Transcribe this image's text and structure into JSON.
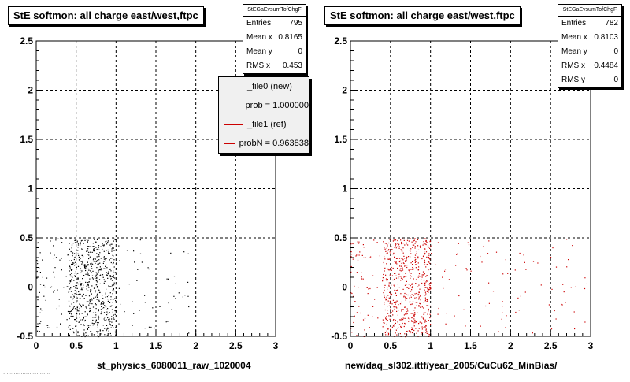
{
  "footer": "...........................",
  "chart_data": [
    {
      "type": "scatter",
      "title": "StE softmon: all charge east/west,ftpc",
      "xlabel": "st_physics_6080011_raw_1020004",
      "ylabel": "",
      "xlim": [
        0,
        3
      ],
      "ylim": [
        -0.5,
        2.5
      ],
      "xticks": [
        "0",
        "0.5",
        "1",
        "1.5",
        "2",
        "2.5",
        "3"
      ],
      "yticks": [
        "-0.5",
        "0",
        "0.5",
        "1",
        "1.5",
        "2",
        "2.5"
      ],
      "grid": true,
      "marker_color": "#000000",
      "stats": {
        "header": "StEGaEvsumTofChgF",
        "rows": [
          {
            "label": "Entries",
            "value": "795"
          },
          {
            "label": "Mean x",
            "value": "0.8165"
          },
          {
            "label": "Mean y",
            "value": "0"
          },
          {
            "label": "RMS x",
            "value": "0.453"
          }
        ]
      },
      "legend": [
        {
          "label": "_file0 (new)",
          "color": "#000000"
        },
        {
          "label": "prob = 1.000000",
          "color": "#000000"
        },
        {
          "label": "_file1 (ref)",
          "color": "#cc0000"
        },
        {
          "label": "probN = 0.963838",
          "color": "#cc0000"
        }
      ],
      "scatter_x_range": [
        0.0,
        1.95
      ],
      "scatter_y_range": [
        -0.5,
        0.5
      ],
      "scatter_x_core": [
        0.4,
        1.0
      ],
      "n_points": 795
    },
    {
      "type": "scatter",
      "title": "StE softmon: all charge east/west,ftpc",
      "xlabel": "new/daq_sl302.ittf/year_2005/CuCu62_MinBias/",
      "ylabel": "",
      "xlim": [
        0,
        3
      ],
      "ylim": [
        -0.5,
        2.5
      ],
      "xticks": [
        "0",
        "0.5",
        "1",
        "1.5",
        "2",
        "2.5",
        "3"
      ],
      "yticks": [
        "-0.5",
        "0",
        "0.5",
        "1",
        "1.5",
        "2",
        "2.5"
      ],
      "grid": true,
      "marker_color": "#cc0000",
      "stats": {
        "header": "StEGaEvsumTofChgF",
        "rows": [
          {
            "label": "Entries",
            "value": "782"
          },
          {
            "label": "Mean x",
            "value": "0.8103"
          },
          {
            "label": "Mean y",
            "value": "0"
          },
          {
            "label": "RMS x",
            "value": "0.4484"
          },
          {
            "label": "RMS y",
            "value": "0"
          }
        ]
      },
      "scatter_x_range": [
        0.0,
        2.95
      ],
      "scatter_y_range": [
        -0.5,
        0.5
      ],
      "scatter_x_core": [
        0.4,
        1.0
      ],
      "n_points": 782
    }
  ]
}
